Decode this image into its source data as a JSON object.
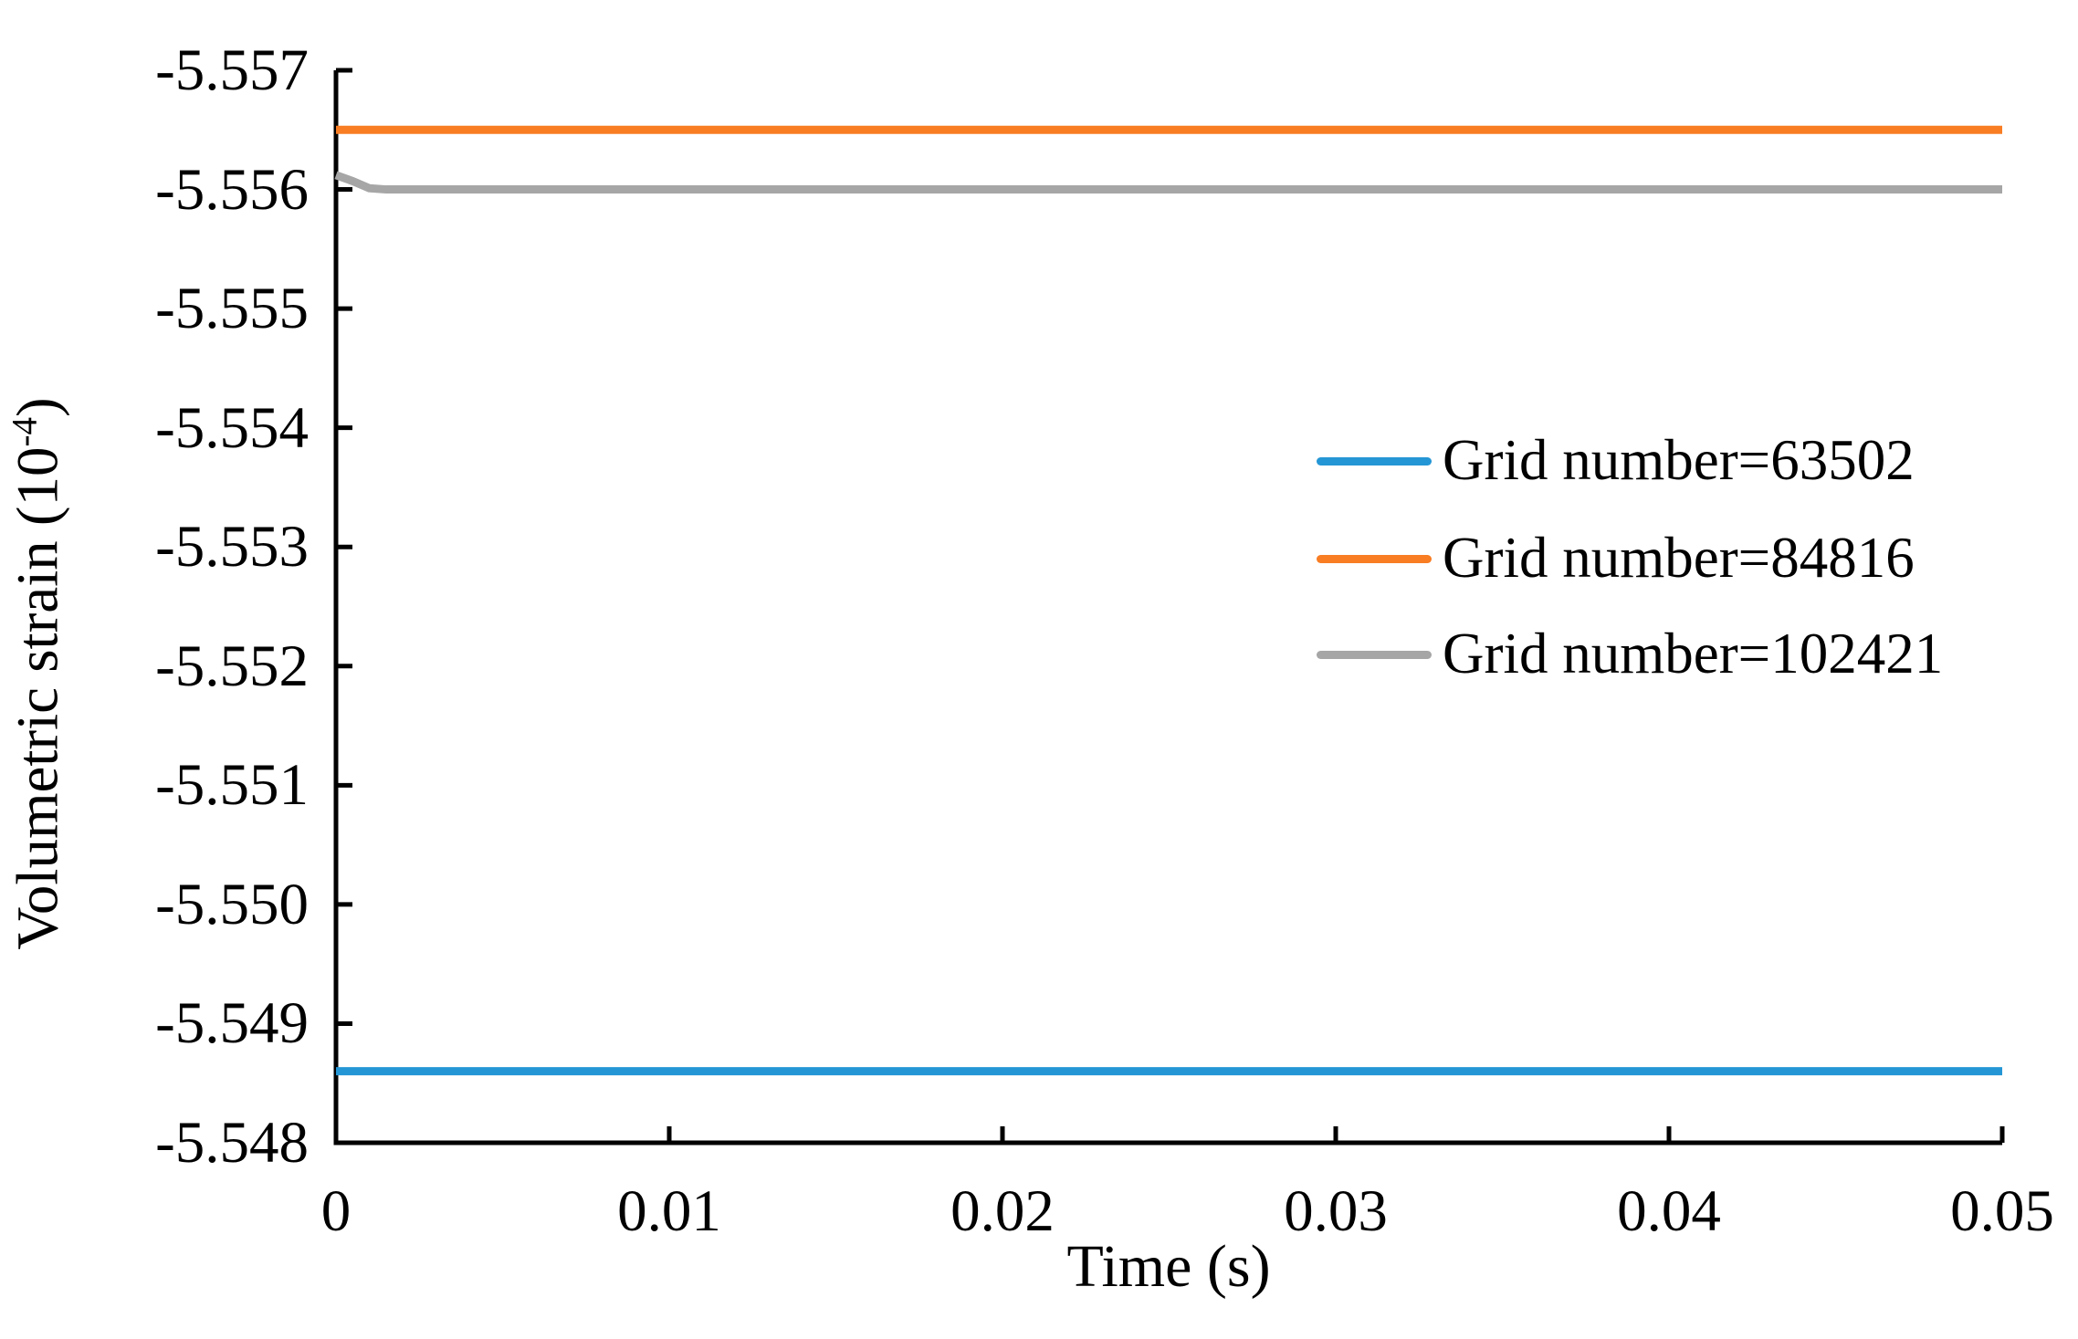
{
  "chart_data": {
    "type": "line",
    "title": "",
    "xlabel": "Time (s)",
    "ylabel": {
      "base": "Volumetric strain (10",
      "sup": "-4",
      "close": ")"
    },
    "xlim": [
      0,
      0.05
    ],
    "ylim_top_to_bottom": [
      -5.557,
      -5.548
    ],
    "grid": false,
    "legend_position": "center-right",
    "x_ticks": {
      "values": [
        0,
        0.01,
        0.02,
        0.03,
        0.04,
        0.05
      ],
      "labels": [
        "0",
        "0.01",
        "0.02",
        "0.03",
        "0.04",
        "0.05"
      ]
    },
    "y_ticks": {
      "values": [
        -5.557,
        -5.556,
        -5.555,
        -5.554,
        -5.553,
        -5.552,
        -5.551,
        -5.55,
        -5.549,
        -5.548
      ],
      "labels": [
        "-5.557",
        "-5.556",
        "-5.555",
        "-5.554",
        "-5.553",
        "-5.552",
        "-5.551",
        "-5.550",
        "-5.549",
        "-5.548"
      ]
    },
    "series": [
      {
        "name": "Grid number=63502",
        "color": "#2496D5",
        "points": [
          [
            0,
            -5.5486
          ],
          [
            0.05,
            -5.5486
          ]
        ]
      },
      {
        "name": "Grid number=84816",
        "color": "#F87D23",
        "points": [
          [
            0,
            -5.5565
          ],
          [
            0.05,
            -5.5565
          ]
        ]
      },
      {
        "name": "Grid number=102421",
        "color": "#A6A6A6",
        "points": [
          [
            0,
            -5.55612
          ],
          [
            0.0005,
            -5.55607
          ],
          [
            0.001,
            -5.55601
          ],
          [
            0.0015,
            -5.556
          ],
          [
            0.05,
            -5.556
          ]
        ]
      }
    ],
    "colors": {
      "axis": "#000000",
      "text": "#000000",
      "background": "#FFFFFF"
    }
  }
}
